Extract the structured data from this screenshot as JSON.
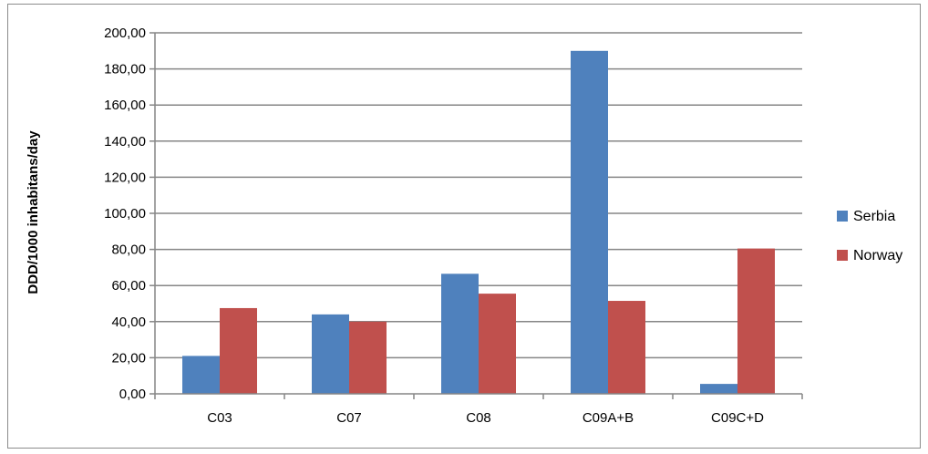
{
  "chart_data": {
    "type": "bar",
    "title": "",
    "xlabel": "",
    "ylabel": "DDD/1000 inhabitans/day",
    "categories": [
      "C03",
      "C07",
      "C08",
      "C09A+B",
      "C09C+D"
    ],
    "series": [
      {
        "name": "Serbia",
        "color": "#4f81bd",
        "values": [
          21.0,
          44.0,
          66.5,
          190.0,
          5.5
        ]
      },
      {
        "name": "Norway",
        "color": "#c0504d",
        "values": [
          47.5,
          40.0,
          55.5,
          51.5,
          80.5
        ]
      }
    ],
    "ylim": [
      0,
      200
    ],
    "ytick_step": 20,
    "ytick_labels": [
      "0,00",
      "20,00",
      "40,00",
      "60,00",
      "80,00",
      "100,00",
      "120,00",
      "140,00",
      "160,00",
      "180,00",
      "200,00"
    ],
    "grid": true,
    "legend_position": "right"
  }
}
